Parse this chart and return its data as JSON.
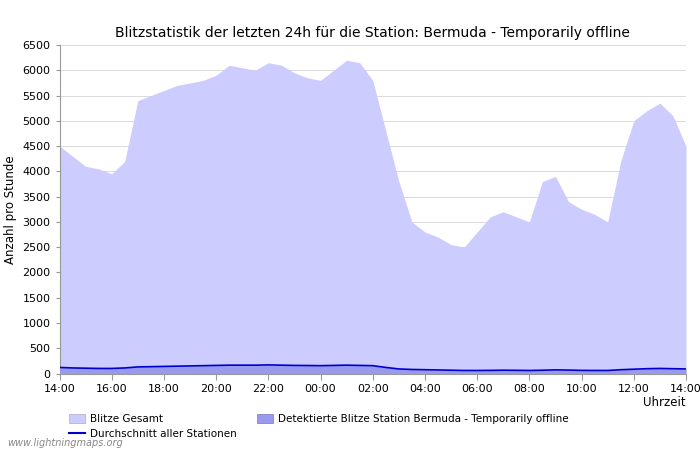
{
  "title": "Blitzstatistik der letzten 24h für die Station: Bermuda - Temporarily offline",
  "xlabel": "Uhrzeit",
  "ylabel": "Anzahl pro Stunde",
  "xlim": [
    0,
    48
  ],
  "ylim": [
    0,
    6500
  ],
  "yticks": [
    0,
    500,
    1000,
    1500,
    2000,
    2500,
    3000,
    3500,
    4000,
    4500,
    5000,
    5500,
    6000,
    6500
  ],
  "xtick_labels": [
    "14:00",
    "16:00",
    "18:00",
    "20:00",
    "22:00",
    "00:00",
    "02:00",
    "04:00",
    "06:00",
    "08:00",
    "10:00",
    "12:00",
    "14:00"
  ],
  "xtick_positions": [
    0,
    4,
    8,
    12,
    16,
    20,
    24,
    28,
    32,
    36,
    40,
    44,
    48
  ],
  "background_color": "#ffffff",
  "plot_bg_color": "#ffffff",
  "fill_color_gesamt": "#ccccff",
  "fill_color_station": "#9999ee",
  "line_color": "#0000cc",
  "watermark": "www.lightningmaps.org",
  "legend_entries": [
    "Blitze Gesamt",
    "Durchschnitt aller Stationen",
    "Detektierte Blitze Station Bermuda - Temporarily offline"
  ],
  "title_fontsize": 10,
  "axis_fontsize": 8.5,
  "tick_fontsize": 8,
  "x_values": [
    0,
    1,
    2,
    3,
    4,
    5,
    6,
    7,
    8,
    9,
    10,
    11,
    12,
    13,
    14,
    15,
    16,
    17,
    18,
    19,
    20,
    21,
    22,
    23,
    24,
    25,
    26,
    27,
    28,
    29,
    30,
    31,
    32,
    33,
    34,
    35,
    36,
    37,
    38,
    39,
    40,
    41,
    42,
    43,
    44,
    45,
    46,
    47,
    48
  ],
  "y_gesamt": [
    4500,
    4300,
    4100,
    4050,
    3950,
    4200,
    5400,
    5500,
    5600,
    5700,
    5750,
    5800,
    5900,
    6100,
    6050,
    6000,
    6150,
    6100,
    5950,
    5850,
    5800,
    6000,
    6200,
    6150,
    5800,
    4800,
    3800,
    3000,
    2800,
    2700,
    2550,
    2500,
    2800,
    3100,
    3200,
    3100,
    3000,
    3800,
    3900,
    3400,
    3250,
    3150,
    3000,
    4200,
    5000,
    5200,
    5350,
    5100,
    4500
  ],
  "y_average": [
    120,
    110,
    105,
    100,
    100,
    110,
    130,
    135,
    140,
    145,
    150,
    155,
    160,
    165,
    165,
    165,
    170,
    165,
    160,
    158,
    155,
    160,
    165,
    160,
    155,
    120,
    90,
    80,
    75,
    70,
    65,
    60,
    60,
    62,
    65,
    63,
    60,
    65,
    72,
    68,
    62,
    60,
    60,
    75,
    85,
    95,
    100,
    95,
    90
  ]
}
